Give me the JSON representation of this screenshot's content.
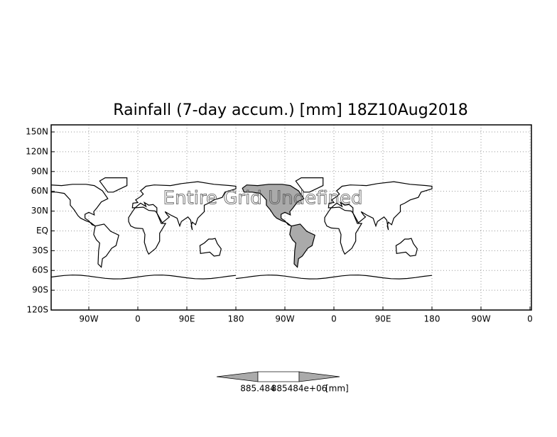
{
  "title": "Rainfall (7-day accum.) [mm] 18Z10Aug2018",
  "overlay_text": "Entire Grid Undefined",
  "lat_labels": [
    "150N",
    "120N",
    "90N",
    "60N",
    "30N",
    "EQ",
    "30S",
    "60S",
    "90S",
    "120S"
  ],
  "lon_labels": [
    "90W",
    "0",
    "90E",
    "180",
    "90W",
    "0",
    "90E",
    "180",
    "90W",
    "0"
  ],
  "colorbar": {
    "labels": [
      "885.484",
      "885484e+06"
    ],
    "unit": "[mm]"
  }
}
